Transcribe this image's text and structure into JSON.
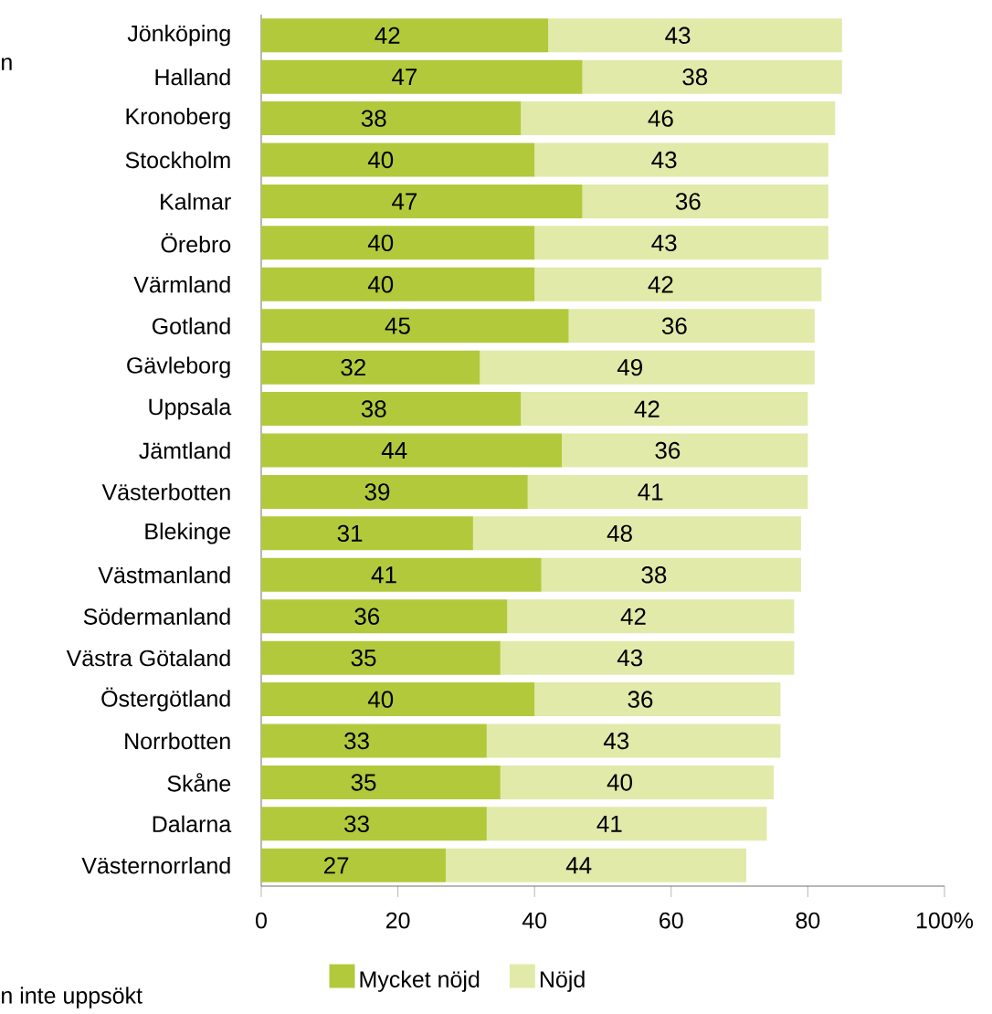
{
  "chart_data": {
    "type": "bar",
    "orientation": "horizontal",
    "stacked": true,
    "data_labels": true,
    "grid": false,
    "legend": "bottom",
    "categories": [
      "Jönköping",
      "Halland",
      "Kronoberg",
      "Stockholm",
      "Kalmar",
      "Örebro",
      "Värmland",
      "Gotland",
      "Gävleborg",
      "Uppsala",
      "Jämtland",
      "Västerbotten",
      "Blekinge",
      "Västmanland",
      "Södermanland",
      "Västra Götaland",
      "Östergötland",
      "Norrbotten",
      "Skåne",
      "Dalarna",
      "Västernorrland"
    ],
    "series": [
      {
        "name": "Mycket nöjd",
        "color": "#b3c93c",
        "values": [
          42,
          47,
          38,
          40,
          47,
          40,
          40,
          45,
          32,
          38,
          44,
          39,
          31,
          41,
          36,
          35,
          40,
          33,
          35,
          33,
          27
        ]
      },
      {
        "name": "Nöjd",
        "color": "#e1eaa9",
        "values": [
          43,
          38,
          46,
          43,
          36,
          43,
          42,
          36,
          49,
          42,
          36,
          41,
          48,
          38,
          42,
          43,
          36,
          43,
          40,
          41,
          44
        ]
      }
    ],
    "xlim": [
      0,
      100
    ],
    "xticks": [
      0,
      20,
      40,
      60,
      80,
      {
        "value": 100,
        "label": "100%"
      }
    ],
    "annotations": [
      "n",
      "n inte uppsökt"
    ]
  }
}
